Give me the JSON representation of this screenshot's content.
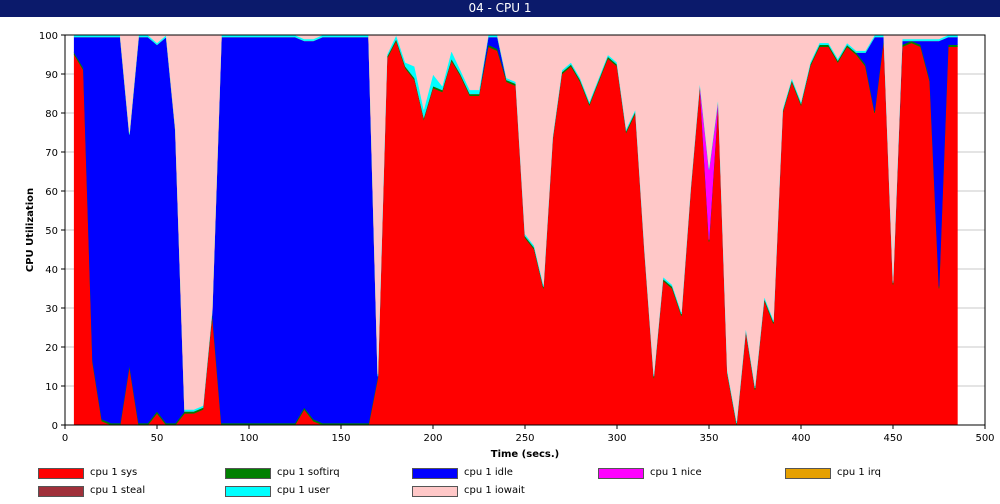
{
  "window": {
    "title": "04 - CPU 1"
  },
  "chart_data": {
    "type": "area",
    "stacked": true,
    "title": "04 - CPU 1",
    "xlabel": "Time (secs.)",
    "ylabel": "CPU Utilization",
    "xlim": [
      0,
      500
    ],
    "ylim": [
      0,
      100
    ],
    "xticks": [
      0,
      50,
      100,
      150,
      200,
      250,
      300,
      350,
      400,
      450,
      500
    ],
    "yticks": [
      0,
      10,
      20,
      30,
      40,
      50,
      60,
      70,
      80,
      90,
      100
    ],
    "grid": true,
    "legend_position": "bottom",
    "x": [
      5,
      10,
      15,
      20,
      25,
      30,
      35,
      40,
      45,
      50,
      55,
      60,
      65,
      70,
      75,
      80,
      85,
      90,
      95,
      100,
      105,
      110,
      115,
      120,
      125,
      130,
      135,
      140,
      145,
      150,
      155,
      160,
      165,
      170,
      175,
      180,
      185,
      190,
      195,
      200,
      205,
      210,
      215,
      220,
      225,
      230,
      235,
      240,
      245,
      250,
      255,
      260,
      265,
      270,
      275,
      280,
      285,
      290,
      295,
      300,
      305,
      310,
      315,
      320,
      325,
      330,
      335,
      340,
      345,
      350,
      355,
      360,
      365,
      370,
      375,
      380,
      385,
      390,
      395,
      400,
      405,
      410,
      415,
      420,
      425,
      430,
      435,
      440,
      445,
      450,
      455,
      460,
      465,
      470,
      475,
      480,
      485
    ],
    "series": [
      {
        "name": "cpu 1 sys",
        "color": "#ff0000",
        "values": [
          94,
          91,
          16,
          1,
          0,
          0,
          15,
          0,
          0,
          3,
          0,
          0,
          3,
          3,
          4,
          28,
          0,
          0,
          0,
          0,
          0,
          0,
          0,
          0,
          0,
          4,
          1,
          0,
          0,
          0,
          0,
          0,
          0,
          12,
          94,
          98,
          91,
          88,
          78,
          86,
          85,
          93,
          89,
          84,
          84,
          97,
          95,
          88,
          87,
          48,
          45,
          35,
          73,
          90,
          92,
          88,
          82,
          88,
          94,
          92,
          75,
          80,
          44,
          12,
          37,
          35,
          28,
          60,
          87,
          47,
          83,
          13,
          0,
          24,
          9,
          32,
          26,
          80,
          88,
          82,
          92,
          97,
          97,
          93,
          97,
          95,
          92,
          80,
          99,
          36,
          97,
          98,
          97,
          88,
          35,
          97,
          97
        ]
      },
      {
        "name": "cpu 1 softirq",
        "color": "#008000",
        "values": [
          0.5,
          0.5,
          0.5,
          0.5,
          0.5,
          0.5,
          0.5,
          0.5,
          0.5,
          0.5,
          0.5,
          0.5,
          0.5,
          0.5,
          0.5,
          1,
          0.5,
          0.5,
          0.5,
          0.5,
          0.5,
          0.5,
          0.5,
          0.5,
          0.5,
          0.5,
          0.5,
          0.5,
          0.5,
          0.5,
          0.5,
          0.5,
          0.5,
          0.5,
          0.5,
          0.5,
          0.5,
          0.5,
          0.5,
          0.5,
          0.5,
          0.5,
          0.5,
          0.5,
          0.5,
          0.5,
          0.5,
          0.5,
          0.5,
          0.5,
          0.5,
          0.5,
          0.5,
          0.5,
          0.5,
          0.5,
          0.5,
          0.5,
          0.5,
          0.5,
          0.5,
          0.5,
          0.5,
          0.5,
          0.5,
          0.5,
          0.5,
          0.5,
          0.5,
          0.5,
          0.5,
          0.5,
          0.5,
          0.5,
          0.5,
          0.5,
          0.5,
          0.5,
          0.5,
          0.5,
          0.5,
          0.5,
          0.5,
          0.5,
          0.5,
          0.5,
          0.5,
          0.5,
          0.5,
          0.5,
          0.5,
          0.5,
          0.5,
          0.5,
          0.5,
          0.5,
          0.5
        ]
      },
      {
        "name": "cpu 1 idle",
        "color": "#0000ff",
        "values": [
          4,
          8,
          83,
          98,
          99,
          99,
          59,
          99,
          99,
          94,
          99,
          75,
          0,
          0,
          0,
          0,
          99,
          99,
          99,
          99,
          99,
          99,
          99,
          99,
          99,
          94,
          97,
          99,
          99,
          99,
          99,
          99,
          98,
          0,
          0,
          0,
          0,
          0,
          0,
          0,
          0,
          0,
          0,
          0,
          0,
          2,
          3,
          0,
          0,
          0,
          0,
          0,
          0,
          0,
          0,
          0,
          0,
          0,
          0,
          0,
          0,
          0,
          0,
          0,
          0,
          0,
          0,
          0,
          0,
          0,
          0,
          0,
          0,
          0,
          0,
          0,
          0,
          0,
          0,
          0,
          0,
          0,
          0,
          0,
          0,
          0,
          3,
          19,
          0,
          0,
          1,
          0,
          1,
          10,
          63,
          2,
          2
        ]
      },
      {
        "name": "cpu 1 nice",
        "color": "#ff00ff",
        "values": [
          0,
          0,
          0,
          0,
          0,
          0,
          0,
          0,
          0,
          0,
          0,
          0,
          0,
          0,
          0,
          0,
          0,
          0,
          0,
          0,
          0,
          0,
          0,
          0,
          0,
          0,
          0,
          0,
          0,
          0,
          0,
          0,
          0,
          0,
          0,
          0,
          0,
          0,
          0,
          0,
          0,
          0,
          0,
          0,
          0,
          0,
          0,
          0,
          0,
          0,
          0,
          0,
          0,
          0,
          0,
          0,
          0,
          0,
          0,
          0,
          0,
          0,
          0,
          0,
          0,
          0,
          0,
          0,
          0,
          18,
          0,
          0,
          0,
          0,
          0,
          0,
          0,
          0,
          0,
          0,
          0,
          0,
          0,
          0,
          0,
          0,
          0,
          0,
          0,
          0,
          0,
          0,
          0,
          0,
          0,
          0,
          0
        ]
      },
      {
        "name": "cpu 1 irq",
        "color": "#e6a000",
        "values": [
          0,
          0,
          0,
          0,
          0,
          0,
          0,
          0,
          0,
          0,
          0,
          0,
          0,
          0,
          0,
          0,
          0,
          0,
          0,
          0,
          0,
          0,
          0,
          0,
          0,
          0,
          0,
          0,
          0,
          0,
          0,
          0,
          0,
          0,
          0,
          0,
          0,
          0,
          0,
          0,
          0,
          0,
          0,
          0,
          0,
          0,
          0,
          0,
          0,
          0,
          0,
          0,
          0,
          0,
          0,
          0,
          0,
          0,
          0,
          0,
          0,
          0,
          0,
          0,
          0,
          0,
          0,
          0,
          0,
          0,
          0,
          0,
          0,
          0,
          0,
          0,
          0,
          0,
          0,
          0,
          0,
          0,
          0,
          0,
          0,
          0,
          0,
          0,
          0,
          0,
          0,
          0,
          0,
          0,
          0,
          0,
          0
        ]
      },
      {
        "name": "cpu 1 steal",
        "color": "#a0303a",
        "values": [
          0,
          0,
          0,
          0,
          0,
          0,
          0,
          0,
          0,
          0,
          0,
          0,
          0,
          0,
          0,
          0,
          0,
          0,
          0,
          0,
          0,
          0,
          0,
          0,
          0,
          0,
          0,
          0,
          0,
          0,
          0,
          0,
          0,
          0,
          0,
          0,
          0,
          0,
          0,
          0,
          0,
          0,
          0,
          0,
          0,
          0,
          0,
          0,
          0,
          0,
          0,
          0,
          0,
          0,
          0,
          0,
          0,
          0,
          0,
          0,
          0,
          0,
          0,
          0,
          0,
          0,
          0,
          0,
          0,
          0,
          0,
          0,
          0,
          0,
          0,
          0,
          0,
          0,
          0,
          0,
          0,
          0,
          0,
          0,
          0,
          0,
          0,
          0,
          0,
          0,
          0,
          0,
          0,
          0,
          0,
          0,
          0
        ]
      },
      {
        "name": "cpu 1 user",
        "color": "#00ffff",
        "values": [
          0.5,
          0.5,
          0.5,
          0.5,
          0.5,
          0.5,
          0.5,
          0.5,
          0.5,
          0.5,
          0.5,
          0.5,
          0.5,
          0.5,
          0.5,
          0.5,
          0.5,
          0.5,
          0.5,
          0.5,
          0.5,
          0.5,
          0.5,
          0.5,
          0.5,
          0.5,
          0.5,
          0.5,
          0.5,
          0.5,
          0.5,
          0.5,
          0.5,
          0.5,
          0.5,
          1,
          1,
          3,
          2,
          3,
          1,
          2,
          1,
          1,
          1,
          0.5,
          0.5,
          0.5,
          0.5,
          0.5,
          0.5,
          0.5,
          0.5,
          0.5,
          0.5,
          0.5,
          0.5,
          0.5,
          0.5,
          0.5,
          0.5,
          0.5,
          0.5,
          0.5,
          0.5,
          0.5,
          0.5,
          0.5,
          0.5,
          0.5,
          0.5,
          0.5,
          0.5,
          0.5,
          0.5,
          0.5,
          0.5,
          0.5,
          0.5,
          0.5,
          0.5,
          0.5,
          0.5,
          0.5,
          0.5,
          0.5,
          0.5,
          0.5,
          0.5,
          0.5,
          0.5,
          0.5,
          0.5,
          0.5,
          0.5,
          0.5,
          0.5
        ]
      },
      {
        "name": "cpu 1 iowait",
        "color": "#ffc8c8",
        "values": [
          0,
          0,
          0,
          0,
          0,
          0,
          25,
          0,
          0,
          2,
          0,
          24,
          96,
          96,
          95,
          70,
          0,
          0,
          0,
          0,
          0,
          0,
          0,
          0,
          0,
          1,
          1,
          0,
          0,
          0,
          0,
          0,
          0,
          87,
          5,
          0,
          7,
          8,
          19,
          10,
          13,
          4,
          9,
          14,
          14,
          0,
          0,
          11,
          12,
          51,
          54,
          64,
          26,
          9,
          7,
          11,
          17,
          11,
          5,
          7,
          24,
          19,
          55,
          87,
          62,
          64,
          71,
          39,
          12,
          34,
          16,
          86,
          99,
          75,
          90,
          67,
          73,
          19,
          11,
          17,
          7,
          2,
          2,
          6,
          2,
          4,
          4,
          0,
          0,
          63,
          1,
          1,
          1,
          1,
          1,
          0,
          0
        ]
      }
    ]
  }
}
